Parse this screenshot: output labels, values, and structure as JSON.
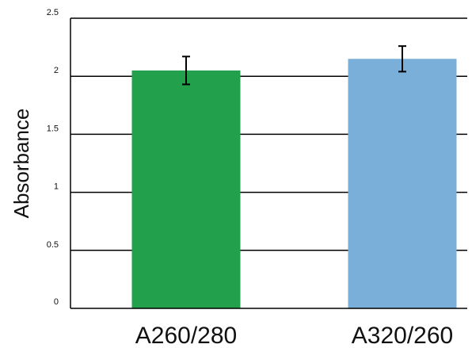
{
  "chart_data": {
    "type": "bar",
    "title": "",
    "xlabel": "",
    "ylabel": "Absorbance",
    "categories": [
      "A260/280",
      "A320/260"
    ],
    "values": [
      2.05,
      2.15
    ],
    "error": [
      0.12,
      0.11
    ],
    "colors": [
      "#22a04b",
      "#7aafd9"
    ],
    "ylim": [
      0,
      2.5
    ],
    "yticks": [
      0,
      0.5,
      1,
      1.5,
      2,
      2.5
    ],
    "ytick_labels": [
      "0",
      "0.5",
      "1",
      "1.5",
      "2",
      "2.5"
    ],
    "grid": true,
    "legend": "none"
  }
}
